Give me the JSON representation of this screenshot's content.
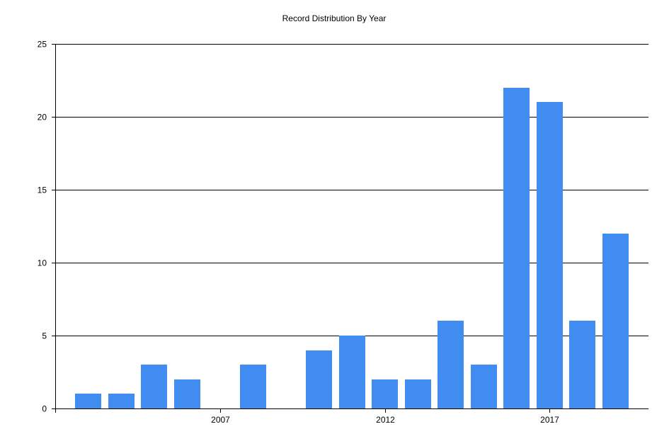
{
  "chart_data": {
    "type": "bar",
    "title": "Record Distribution By Year",
    "xlabel": "",
    "ylabel": "",
    "x": [
      2003,
      2004,
      2005,
      2006,
      2007,
      2008,
      2009,
      2010,
      2011,
      2012,
      2013,
      2014,
      2015,
      2016,
      2017,
      2018,
      2019
    ],
    "values": [
      1,
      1,
      3,
      2,
      0,
      3,
      0,
      4,
      5,
      2,
      2,
      6,
      3,
      22,
      21,
      6,
      12
    ],
    "ylim": [
      0,
      25
    ],
    "yticks": [
      "0",
      "5",
      "10",
      "15",
      "20",
      "25"
    ],
    "xticks": [
      "2007",
      "2012",
      "2017"
    ],
    "grid": "horizontal",
    "legend": "none",
    "bar_color": "#418CF0"
  }
}
